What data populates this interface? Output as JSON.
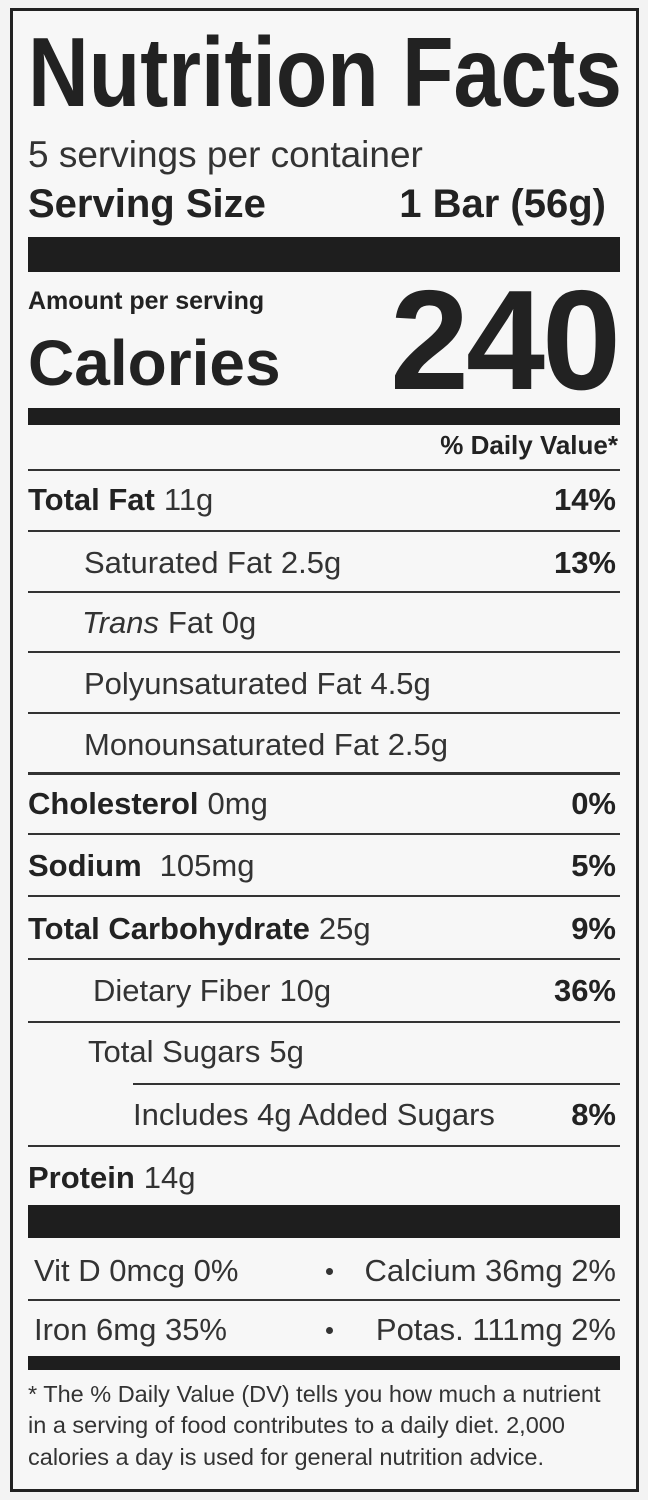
{
  "title": "Nutrition Facts",
  "servings": "5 servings per container",
  "serving_size": {
    "label": "Serving Size",
    "value": "1 Bar (56g)"
  },
  "amount_per_serving": "Amount per serving",
  "calories": {
    "label": "Calories",
    "value": 240
  },
  "daily_value_header": "% Daily Value*",
  "nutrients": [
    {
      "name": "Total Fat",
      "amount": "11g",
      "daily_value": "14%"
    },
    {
      "name": "Saturated Fat",
      "amount": "2.5g",
      "daily_value": "13%"
    },
    {
      "prefix": "Trans",
      "name": "Fat",
      "amount": "0g"
    },
    {
      "name": "Polyunsaturated Fat",
      "amount": "4.5g"
    },
    {
      "name": "Monounsaturated Fat",
      "amount": "2.5g"
    },
    {
      "name": "Cholesterol",
      "amount": "0mg",
      "daily_value": "0%"
    },
    {
      "name": "Sodium",
      "amount": "105mg",
      "daily_value": "5%"
    },
    {
      "name": "Total Carbohydrate",
      "amount": "25g",
      "daily_value": "9%"
    },
    {
      "name": "Dietary Fiber",
      "amount": "10g",
      "daily_value": "36%"
    },
    {
      "name": "Total Sugars",
      "amount": "5g"
    },
    {
      "name": "Includes 4g Added Sugars",
      "daily_value": "8%"
    },
    {
      "name": "Protein",
      "amount": "14g"
    }
  ],
  "vitamins": [
    [
      "Vit D 0mcg 0%",
      "Calcium 36mg 2%"
    ],
    [
      "Iron 6mg 35%",
      "Potas. 111mg 2%"
    ]
  ],
  "footnote": [
    "* The % Daily Value (DV) tells you how much a nutrient",
    "in a serving of food contributes to a daily diet. 2,000",
    "calories a day is used for general nutrition advice."
  ]
}
